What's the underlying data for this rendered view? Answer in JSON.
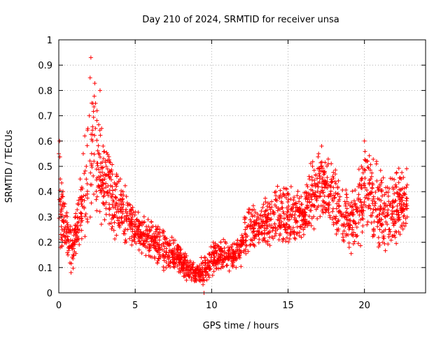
{
  "colors": {
    "series": "#ff0000",
    "axis": "#000000",
    "grid": "#a0a0a0",
    "background": "#ffffff"
  },
  "chart_data": {
    "type": "scatter",
    "title": "Day 210 of 2024, SRMTID for receiver unsa",
    "xlabel": "GPS time / hours",
    "ylabel": "SRMTID / TECUs",
    "xlim": [
      0,
      24
    ],
    "ylim": [
      0,
      1
    ],
    "xticks": [
      0,
      5,
      10,
      15,
      20
    ],
    "xtick_labels": [
      "0",
      "5",
      "10",
      "15",
      "20"
    ],
    "yticks": [
      0,
      0.1,
      0.2,
      0.3,
      0.4,
      0.5,
      0.6,
      0.7,
      0.8,
      0.9,
      1
    ],
    "ytick_labels": [
      "0",
      "0.1",
      "0.2",
      "0.3",
      "0.4",
      "0.5",
      "0.6",
      "0.7",
      "0.8",
      "0.9",
      "1"
    ],
    "grid": true,
    "marker": "+",
    "series": [
      {
        "name": "SRMTID",
        "color": "#ff0000",
        "x": [
          0.0,
          0.05,
          0.1,
          0.15,
          0.2,
          0.3,
          0.4,
          0.5,
          0.6,
          0.7,
          0.8,
          0.9,
          1.0,
          1.1,
          1.2,
          1.3,
          1.4,
          1.5,
          1.6,
          1.7,
          1.8,
          1.9,
          2.0,
          2.05,
          2.1,
          2.15,
          2.2,
          2.3,
          2.4,
          2.5,
          2.6,
          2.7,
          2.8,
          2.9,
          3.0,
          3.1,
          3.2,
          3.3,
          3.4,
          3.5,
          3.6,
          3.7,
          3.8,
          3.9,
          4.0,
          4.1,
          4.2,
          4.3,
          4.4,
          4.5,
          4.6,
          4.7,
          4.8,
          4.9,
          5.0,
          5.2,
          5.4,
          5.6,
          5.8,
          6.0,
          6.2,
          6.4,
          6.6,
          6.8,
          7.0,
          7.2,
          7.4,
          7.6,
          7.8,
          8.0,
          8.2,
          8.4,
          8.6,
          8.8,
          9.0,
          9.2,
          9.4,
          9.5,
          9.6,
          9.8,
          10.0,
          10.2,
          10.4,
          10.6,
          10.8,
          11.0,
          11.2,
          11.4,
          11.6,
          11.8,
          12.0,
          12.2,
          12.4,
          12.6,
          12.8,
          13.0,
          13.2,
          13.4,
          13.6,
          13.8,
          14.0,
          14.2,
          14.4,
          14.6,
          14.8,
          15.0,
          15.2,
          15.4,
          15.6,
          15.8,
          16.0,
          16.2,
          16.4,
          16.6,
          16.8,
          17.0,
          17.2,
          17.4,
          17.6,
          17.8,
          18.0,
          18.2,
          18.4,
          18.6,
          18.8,
          19.0,
          19.2,
          19.4,
          19.6,
          19.8,
          20.0,
          20.2,
          20.4,
          20.6,
          20.8,
          21.0,
          21.2,
          21.4,
          21.6,
          21.8,
          22.0,
          22.2,
          22.4,
          22.6,
          22.8
        ],
        "y": [
          0.55,
          0.6,
          0.45,
          0.3,
          0.22,
          0.28,
          0.2,
          0.24,
          0.15,
          0.18,
          0.08,
          0.25,
          0.2,
          0.3,
          0.22,
          0.35,
          0.45,
          0.38,
          0.55,
          0.62,
          0.5,
          0.65,
          0.7,
          0.85,
          0.93,
          0.75,
          0.6,
          0.52,
          0.65,
          0.72,
          0.55,
          0.8,
          0.65,
          0.58,
          0.45,
          0.5,
          0.4,
          0.35,
          0.48,
          0.42,
          0.3,
          0.38,
          0.46,
          0.32,
          0.35,
          0.28,
          0.4,
          0.3,
          0.33,
          0.25,
          0.35,
          0.28,
          0.3,
          0.22,
          0.32,
          0.25,
          0.22,
          0.28,
          0.18,
          0.22,
          0.2,
          0.25,
          0.18,
          0.15,
          0.2,
          0.16,
          0.22,
          0.14,
          0.18,
          0.12,
          0.1,
          0.08,
          0.12,
          0.06,
          0.09,
          0.05,
          0.1,
          0.0,
          0.07,
          0.12,
          0.15,
          0.18,
          0.13,
          0.2,
          0.16,
          0.14,
          0.18,
          0.12,
          0.1,
          0.15,
          0.2,
          0.25,
          0.32,
          0.28,
          0.22,
          0.3,
          0.26,
          0.35,
          0.28,
          0.22,
          0.32,
          0.4,
          0.3,
          0.38,
          0.25,
          0.3,
          0.42,
          0.35,
          0.28,
          0.32,
          0.25,
          0.38,
          0.45,
          0.5,
          0.42,
          0.55,
          0.58,
          0.48,
          0.35,
          0.42,
          0.3,
          0.25,
          0.38,
          0.22,
          0.3,
          0.18,
          0.25,
          0.35,
          0.42,
          0.5,
          0.6,
          0.52,
          0.45,
          0.38,
          0.3,
          0.25,
          0.2,
          0.28,
          0.25,
          0.3,
          0.22,
          0.38,
          0.45,
          0.35,
          0.3
        ]
      }
    ],
    "envelope": {
      "hours": [
        0,
        0.3,
        0.6,
        0.9,
        1.2,
        1.5,
        1.8,
        2.1,
        2.3,
        2.6,
        3.0,
        3.4,
        3.8,
        4.2,
        4.6,
        5.0,
        5.5,
        6.0,
        6.5,
        7.0,
        7.5,
        8.0,
        8.5,
        9.0,
        9.5,
        10.0,
        10.5,
        11.0,
        11.5,
        12.0,
        12.5,
        13.0,
        13.5,
        14.0,
        14.5,
        15.0,
        15.5,
        16.0,
        16.5,
        17.0,
        17.5,
        18.0,
        18.5,
        19.0,
        19.5,
        20.0,
        20.5,
        21.0,
        21.5,
        22.0,
        22.5,
        22.8
      ],
      "low": [
        0.15,
        0.15,
        0.12,
        0.08,
        0.15,
        0.18,
        0.2,
        0.25,
        0.3,
        0.28,
        0.25,
        0.22,
        0.2,
        0.18,
        0.18,
        0.16,
        0.14,
        0.12,
        0.1,
        0.08,
        0.08,
        0.06,
        0.04,
        0.03,
        0.03,
        0.06,
        0.08,
        0.08,
        0.08,
        0.1,
        0.15,
        0.18,
        0.18,
        0.18,
        0.16,
        0.18,
        0.18,
        0.2,
        0.22,
        0.25,
        0.25,
        0.2,
        0.18,
        0.14,
        0.16,
        0.2,
        0.18,
        0.12,
        0.15,
        0.18,
        0.2,
        0.22
      ],
      "high": [
        0.6,
        0.4,
        0.3,
        0.28,
        0.35,
        0.5,
        0.62,
        0.8,
        0.92,
        0.7,
        0.65,
        0.55,
        0.5,
        0.45,
        0.4,
        0.35,
        0.32,
        0.3,
        0.28,
        0.26,
        0.22,
        0.18,
        0.15,
        0.13,
        0.15,
        0.2,
        0.22,
        0.22,
        0.2,
        0.3,
        0.38,
        0.35,
        0.38,
        0.45,
        0.45,
        0.42,
        0.4,
        0.45,
        0.52,
        0.58,
        0.6,
        0.55,
        0.45,
        0.4,
        0.48,
        0.62,
        0.58,
        0.5,
        0.48,
        0.5,
        0.52,
        0.5
      ],
      "density_per_hour": 90,
      "seed": 210
    }
  }
}
